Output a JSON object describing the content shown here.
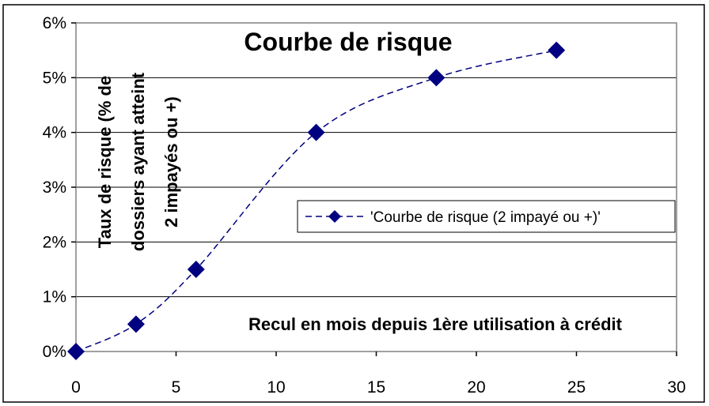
{
  "chart_data": {
    "type": "line",
    "title": "Courbe de risque",
    "xlabel": "Recul en mois depuis 1ère utilisation à crédit",
    "ylabel_lines": [
      "Taux de risque (% de",
      "dossiers ayant atteint",
      "2 impayés ou +)"
    ],
    "xlim": [
      0,
      30
    ],
    "ylim": [
      0,
      6
    ],
    "x_ticks": [
      0,
      5,
      10,
      15,
      20,
      25,
      30
    ],
    "y_ticks": [
      "0%",
      "1%",
      "2%",
      "3%",
      "4%",
      "5%",
      "6%"
    ],
    "grid": "horizontal",
    "legend_position": "right-middle",
    "series": [
      {
        "name": "'Courbe de risque (2 impayé ou +)'",
        "color": "#000080",
        "line_style": "dashed",
        "marker": "diamond",
        "x": [
          0,
          3,
          6,
          12,
          18,
          24
        ],
        "y": [
          0,
          0.5,
          1.5,
          4.0,
          5.0,
          5.5
        ]
      }
    ]
  }
}
